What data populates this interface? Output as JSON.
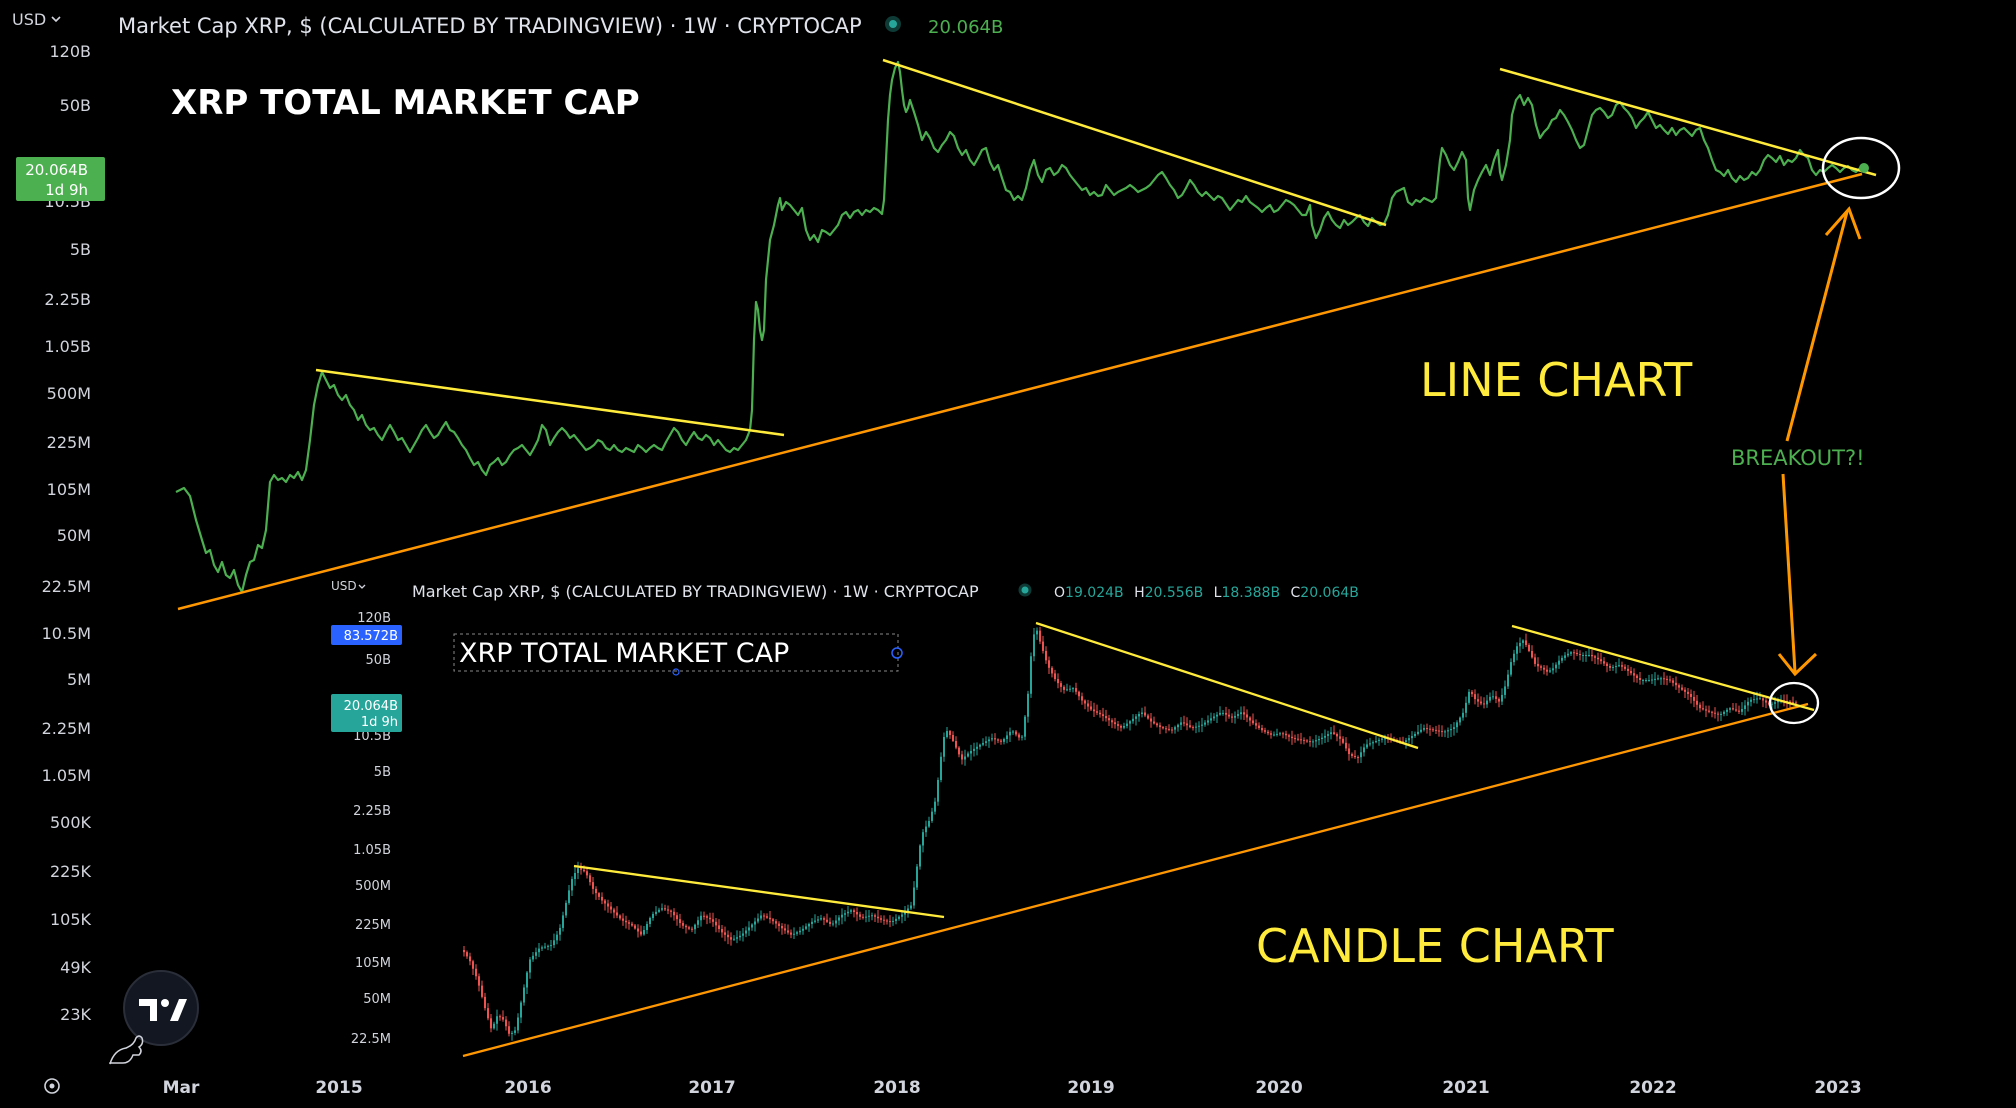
{
  "top_chart": {
    "currency": "USD",
    "header": "Market Cap XRP, $ (CALCULATED BY TRADINGVIEW) · 1W · CRYPTOCAP",
    "last_value": "20.064B",
    "price_tag": "20.064B",
    "countdown": "1d 9h",
    "annotation_title": "XRP TOTAL MARKET CAP",
    "annotation_type": "LINE CHART",
    "breakout_label": "BREAKOUT?!",
    "y_ticks": [
      "120B",
      "50B",
      "10.5B",
      "5B",
      "2.25B",
      "1.05B",
      "500M",
      "225M",
      "105M",
      "50M",
      "22.5M",
      "10.5M",
      "5M",
      "2.25M",
      "1.05M",
      "500K",
      "225K",
      "105K",
      "49K",
      "23K"
    ],
    "x_ticks": [
      "Mar",
      "2015",
      "2016",
      "2017",
      "2018",
      "2019",
      "2020",
      "2021",
      "2022",
      "2023"
    ]
  },
  "bottom_chart": {
    "currency": "USD",
    "header": "Market Cap XRP, $ (CALCULATED BY TRADINGVIEW) · 1W · CRYPTOCAP",
    "ohlc": {
      "o_label": "O",
      "o": "19.024B",
      "h_label": "H",
      "h": "20.556B",
      "l_label": "L",
      "l": "18.388B",
      "c_label": "C",
      "c": "20.064B"
    },
    "high_tag": "83.572B",
    "price_tag": "20.064B",
    "countdown": "1d 9h",
    "annotation_title": "XRP TOTAL MARKET CAP",
    "annotation_type": "CANDLE CHART",
    "y_ticks": [
      "120B",
      "50B",
      "10.5B",
      "5B",
      "2.25B",
      "1.05B",
      "500M",
      "225M",
      "105M",
      "50M",
      "22.5M"
    ]
  },
  "colors": {
    "line": "#4caf50",
    "up": "#26a69a",
    "down": "#ef5350",
    "trend_yellow": "#ffeb3b",
    "trend_orange": "#ff9800",
    "axis_text": "#d1d4dc",
    "price_tag": "#4caf50",
    "high_tag": "#2962ff"
  },
  "icons": {
    "logo": "tradingview-logo-icon",
    "settings": "gear-icon",
    "mascot": "dino-icon"
  },
  "chart_data": [
    {
      "type": "line",
      "title": "XRP TOTAL MARKET CAP",
      "yscale": "log",
      "x": [
        "2015-01",
        "2016-01",
        "2016-04",
        "2016-07",
        "2016-10",
        "2017-01",
        "2017-04",
        "2017-07",
        "2017-10",
        "2018-01",
        "2018-04",
        "2018-07",
        "2018-10",
        "2019-01",
        "2019-04",
        "2019-07",
        "2019-10",
        "2020-01",
        "2020-04",
        "2020-07",
        "2020-10",
        "2021-01",
        "2021-04",
        "2021-07",
        "2021-10",
        "2022-01",
        "2022-04",
        "2022-07",
        "2022-10",
        "2023-01"
      ],
      "series": [
        {
          "values": [
            0.8,
            0.3,
            0.35,
            0.3,
            0.25,
            0.26,
            2.5,
            10,
            10,
            120,
            30,
            18,
            20,
            14,
            13,
            16,
            11,
            8,
            7,
            8,
            10,
            12,
            50,
            30,
            50,
            35,
            25,
            17,
            22,
            20
          ]
        }
      ]
    },
    {
      "type": "candlestick",
      "title": "XRP TOTAL MARKET CAP",
      "yscale": "log",
      "x": [
        "2016-01",
        "2017-01",
        "2018-01",
        "2019-01",
        "2020-01",
        "2021-01",
        "2022-01",
        "2023-01"
      ],
      "last": {
        "open": 19.024,
        "high": 20.556,
        "low": 18.388,
        "close": 20.064,
        "unit": "B"
      }
    }
  ]
}
